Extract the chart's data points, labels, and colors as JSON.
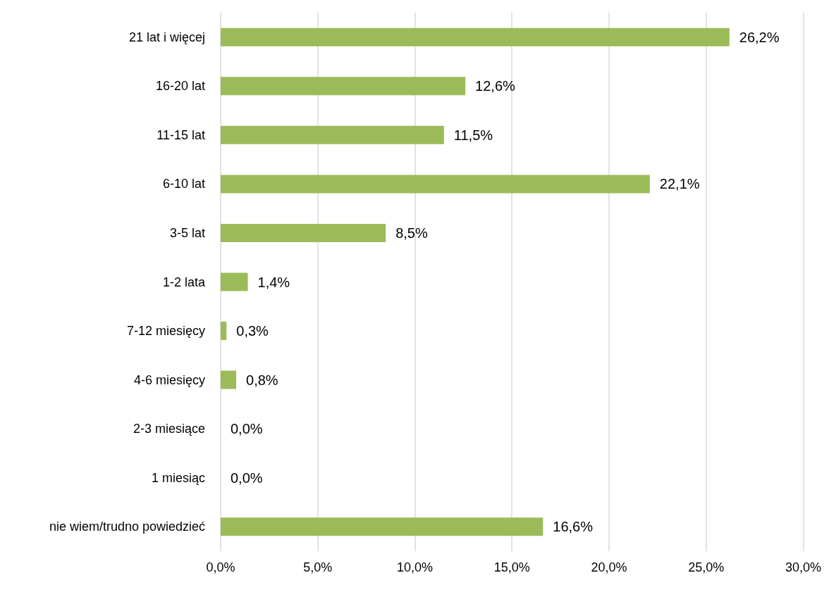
{
  "chart_data": {
    "type": "bar",
    "orientation": "horizontal",
    "categories": [
      "21 lat i więcej",
      "16-20 lat",
      "11-15 lat",
      "6-10 lat",
      "3-5 lat",
      "1-2 lata",
      "7-12 miesięcy",
      "4-6 miesięcy",
      "2-3 miesiące",
      "1 miesiąc",
      "nie wiem/trudno powiedzieć"
    ],
    "values": [
      26.2,
      12.6,
      11.5,
      22.1,
      8.5,
      1.4,
      0.3,
      0.8,
      0.0,
      0.0,
      16.6
    ],
    "value_labels": [
      "26,2%",
      "12,6%",
      "11,5%",
      "22,1%",
      "8,5%",
      "1,4%",
      "0,3%",
      "0,8%",
      "0,0%",
      "0,0%",
      "16,6%"
    ],
    "color": "#9bbb59",
    "xlim": [
      0,
      30
    ],
    "xticks": [
      {
        "value": 0,
        "label": "0,0%"
      },
      {
        "value": 5,
        "label": "5,0%"
      },
      {
        "value": 10,
        "label": "10,0%"
      },
      {
        "value": 15,
        "label": "15,0%"
      },
      {
        "value": 20,
        "label": "20,0%"
      },
      {
        "value": 25,
        "label": "25,0%"
      },
      {
        "value": 30,
        "label": "30,0%"
      }
    ],
    "grid": "x"
  }
}
